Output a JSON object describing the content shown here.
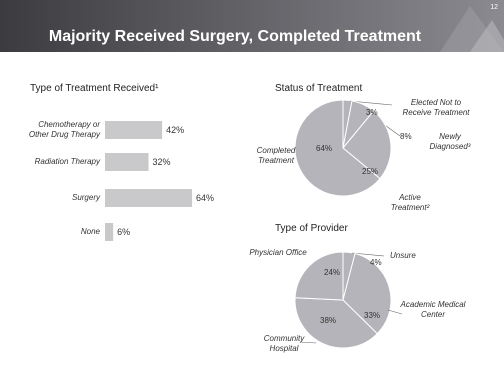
{
  "slide": {
    "title": "Majority Received Surgery, Completed Treatment",
    "page": "12"
  },
  "chart_data": [
    {
      "type": "bar",
      "orientation": "horizontal",
      "title": "Type of Treatment Received¹",
      "categories": [
        "Chemotherapy or Other Drug Therapy",
        "Radiation Therapy",
        "Surgery",
        "None"
      ],
      "values": [
        42,
        32,
        64,
        6
      ],
      "value_labels": [
        "42%",
        "32%",
        "64%",
        "6%"
      ],
      "color": "#c9c9cc"
    },
    {
      "type": "pie",
      "title": "Status of Treatment",
      "categories": [
        "Elected Not to Receive Treatment",
        "Newly Diagnosed³",
        "Active Treatment²",
        "Completed Treatment"
      ],
      "values": [
        3,
        8,
        25,
        64
      ],
      "value_labels": [
        "3%",
        "8%",
        "25%",
        "64%"
      ],
      "color": "#b4b4ba"
    },
    {
      "type": "pie",
      "title": "Type of Provider",
      "categories": [
        "Unsure",
        "Academic Medical Center",
        "Community Hospital",
        "Physician Office"
      ],
      "values": [
        4,
        33,
        38,
        24
      ],
      "value_labels": [
        "4%",
        "33%",
        "38%",
        "24%"
      ],
      "color": "#b4b4ba"
    }
  ]
}
